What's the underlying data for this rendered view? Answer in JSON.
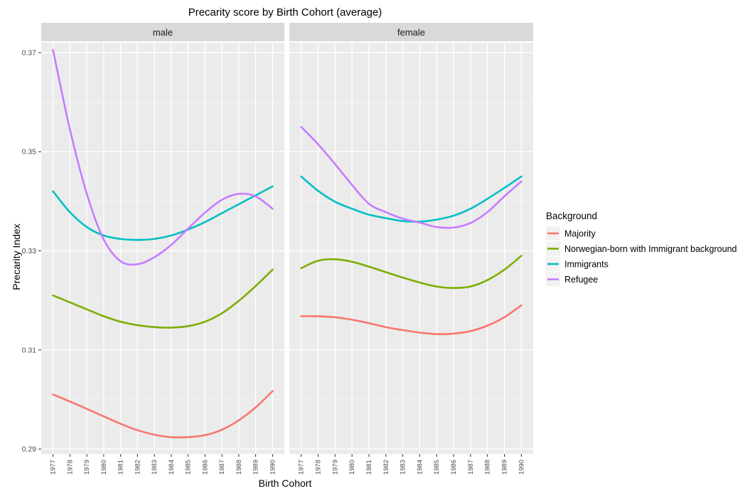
{
  "chart_data": {
    "type": "line",
    "title": "Precarity score by Birth Cohort (average)",
    "xlabel": "Birth Cohort",
    "ylabel": "Precarity Index",
    "ylim": [
      0.289,
      0.372
    ],
    "yticks": [
      0.29,
      0.31,
      0.33,
      0.35,
      0.37
    ],
    "ytick_labels": [
      "0.29",
      "0.31",
      "0.33",
      "0.35",
      "0.37"
    ],
    "xticks": [
      1977,
      1978,
      1979,
      1980,
      1981,
      1982,
      1983,
      1984,
      1985,
      1986,
      1987,
      1988,
      1989,
      1990
    ],
    "grid": true,
    "legend": {
      "title": "Background",
      "placement": "right",
      "entries": [
        "Majority",
        "Norwegian-born with Immigrant background",
        "Immigrants",
        "Refugee"
      ]
    },
    "colors": {
      "Majority": "#F8766D",
      "Norwegian-born with Immigrant background": "#7CAE00",
      "Immigrants": "#00BFC4",
      "Refugee": "#C77CFF"
    },
    "panels": [
      {
        "label": "male",
        "series": [
          {
            "name": "Majority",
            "x": [
              1977,
              1978,
              1979,
              1980,
              1981,
              1982,
              1983,
              1984,
              1985,
              1986,
              1987,
              1988,
              1989,
              1990
            ],
            "values": [
              0.301,
              0.2996,
              0.2981,
              0.2966,
              0.2951,
              0.2938,
              0.2929,
              0.2924,
              0.2924,
              0.2928,
              0.2939,
              0.2958,
              0.2984,
              0.3017
            ]
          },
          {
            "name": "Norwegian-born with Immigrant background",
            "x": [
              1977,
              1978,
              1979,
              1980,
              1981,
              1982,
              1983,
              1984,
              1985,
              1986,
              1987,
              1988,
              1989,
              1990
            ],
            "values": [
              0.321,
              0.3196,
              0.3182,
              0.3168,
              0.3157,
              0.315,
              0.3146,
              0.3145,
              0.3148,
              0.3157,
              0.3174,
              0.3199,
              0.3229,
              0.3262
            ]
          },
          {
            "name": "Immigrants",
            "x": [
              1977,
              1978,
              1979,
              1980,
              1981,
              1982,
              1983,
              1984,
              1985,
              1986,
              1987,
              1988,
              1989,
              1990
            ],
            "values": [
              0.342,
              0.3378,
              0.3348,
              0.3331,
              0.3324,
              0.3322,
              0.3324,
              0.3331,
              0.3343,
              0.3358,
              0.3376,
              0.3394,
              0.3412,
              0.343
            ]
          },
          {
            "name": "Refugee",
            "x": [
              1977,
              1978,
              1979,
              1980,
              1981,
              1982,
              1983,
              1984,
              1985,
              1986,
              1987,
              1988,
              1989,
              1990
            ],
            "values": [
              0.3705,
              0.3545,
              0.3415,
              0.3323,
              0.3279,
              0.3273,
              0.3287,
              0.3312,
              0.3345,
              0.3377,
              0.3403,
              0.3415,
              0.341,
              0.3385
            ]
          }
        ]
      },
      {
        "label": "female",
        "series": [
          {
            "name": "Majority",
            "x": [
              1977,
              1978,
              1979,
              1980,
              1981,
              1982,
              1983,
              1984,
              1985,
              1986,
              1987,
              1988,
              1989,
              1990
            ],
            "values": [
              0.3168,
              0.3168,
              0.3166,
              0.3161,
              0.3154,
              0.3146,
              0.314,
              0.3135,
              0.3132,
              0.3133,
              0.3138,
              0.3149,
              0.3166,
              0.319
            ]
          },
          {
            "name": "Norwegian-born with Immigrant background",
            "x": [
              1977,
              1978,
              1979,
              1980,
              1981,
              1982,
              1983,
              1984,
              1985,
              1986,
              1987,
              1988,
              1989,
              1990
            ],
            "values": [
              0.3265,
              0.328,
              0.3283,
              0.3278,
              0.3268,
              0.3257,
              0.3246,
              0.3236,
              0.3228,
              0.3225,
              0.3228,
              0.3241,
              0.3262,
              0.329
            ]
          },
          {
            "name": "Immigrants",
            "x": [
              1977,
              1978,
              1979,
              1980,
              1981,
              1982,
              1983,
              1984,
              1985,
              1986,
              1987,
              1988,
              1989,
              1990
            ],
            "values": [
              0.345,
              0.3421,
              0.3399,
              0.3385,
              0.3373,
              0.3366,
              0.336,
              0.3359,
              0.3363,
              0.3371,
              0.3385,
              0.3405,
              0.3427,
              0.345
            ]
          },
          {
            "name": "Refugee",
            "x": [
              1977,
              1978,
              1979,
              1980,
              1981,
              1982,
              1983,
              1984,
              1985,
              1986,
              1987,
              1988,
              1989,
              1990
            ],
            "values": [
              0.355,
              0.3515,
              0.3475,
              0.3433,
              0.3395,
              0.3378,
              0.3365,
              0.3357,
              0.3348,
              0.3347,
              0.3356,
              0.3378,
              0.341,
              0.344
            ]
          }
        ]
      }
    ]
  }
}
